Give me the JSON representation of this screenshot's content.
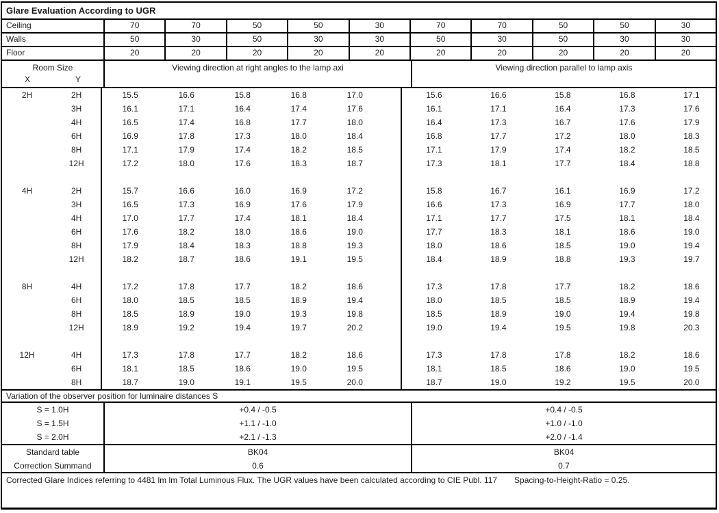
{
  "title": "Glare Evaluation According to UGR",
  "surfaces": [
    {
      "label": "Ceiling",
      "values": [
        "70",
        "70",
        "50",
        "50",
        "30",
        "70",
        "70",
        "50",
        "50",
        "30"
      ]
    },
    {
      "label": "Walls",
      "values": [
        "50",
        "30",
        "50",
        "30",
        "30",
        "50",
        "30",
        "50",
        "30",
        "30"
      ]
    },
    {
      "label": "Floor",
      "values": [
        "20",
        "20",
        "20",
        "20",
        "20",
        "20",
        "20",
        "20",
        "20",
        "20"
      ]
    }
  ],
  "header": {
    "room_size_label": "Room Size",
    "x_label": "X",
    "y_label": "Y",
    "left_heading": "Viewing direction at right angles to the lamp axi",
    "right_heading": "Viewing direction parallel to lamp axis"
  },
  "ugr_rows": [
    {
      "x": "2H",
      "y": "2H",
      "left": [
        "15.5",
        "16.6",
        "15.8",
        "16.8",
        "17.0"
      ],
      "right": [
        "15.6",
        "16.6",
        "15.8",
        "16.8",
        "17.1"
      ]
    },
    {
      "y": "3H",
      "left": [
        "16.1",
        "17.1",
        "16.4",
        "17.4",
        "17.6"
      ],
      "right": [
        "16.1",
        "17.1",
        "16.4",
        "17.3",
        "17.6"
      ]
    },
    {
      "y": "4H",
      "left": [
        "16.5",
        "17.4",
        "16.8",
        "17.7",
        "18.0"
      ],
      "right": [
        "16.4",
        "17.3",
        "16.7",
        "17.6",
        "17.9"
      ]
    },
    {
      "y": "6H",
      "left": [
        "16.9",
        "17.8",
        "17.3",
        "18.0",
        "18.4"
      ],
      "right": [
        "16.8",
        "17.7",
        "17.2",
        "18.0",
        "18.3"
      ]
    },
    {
      "y": "8H",
      "left": [
        "17.1",
        "17.9",
        "17.4",
        "18.2",
        "18.5"
      ],
      "right": [
        "17.1",
        "17.9",
        "17.4",
        "18.2",
        "18.5"
      ]
    },
    {
      "y": "12H",
      "left": [
        "17.2",
        "18.0",
        "17.6",
        "18.3",
        "18.7"
      ],
      "right": [
        "17.3",
        "18.1",
        "17.7",
        "18.4",
        "18.8"
      ]
    },
    {
      "blank": true
    },
    {
      "x": "4H",
      "y": "2H",
      "left": [
        "15.7",
        "16.6",
        "16.0",
        "16.9",
        "17.2"
      ],
      "right": [
        "15.8",
        "16.7",
        "16.1",
        "16.9",
        "17.2"
      ]
    },
    {
      "y": "3H",
      "left": [
        "16.5",
        "17.3",
        "16.9",
        "17.6",
        "17.9"
      ],
      "right": [
        "16.6",
        "17.3",
        "16.9",
        "17.7",
        "18.0"
      ]
    },
    {
      "y": "4H",
      "left": [
        "17.0",
        "17.7",
        "17.4",
        "18.1",
        "18.4"
      ],
      "right": [
        "17.1",
        "17.7",
        "17.5",
        "18.1",
        "18.4"
      ]
    },
    {
      "y": "6H",
      "left": [
        "17.6",
        "18.2",
        "18.0",
        "18.6",
        "19.0"
      ],
      "right": [
        "17.7",
        "18.3",
        "18.1",
        "18.6",
        "19.0"
      ]
    },
    {
      "y": "8H",
      "left": [
        "17.9",
        "18.4",
        "18.3",
        "18.8",
        "19.3"
      ],
      "right": [
        "18.0",
        "18.6",
        "18.5",
        "19.0",
        "19.4"
      ]
    },
    {
      "y": "12H",
      "left": [
        "18.2",
        "18.7",
        "18.6",
        "19.1",
        "19.5"
      ],
      "right": [
        "18.4",
        "18.9",
        "18.8",
        "19.3",
        "19.7"
      ]
    },
    {
      "blank": true
    },
    {
      "x": "8H",
      "y": "4H",
      "left": [
        "17.2",
        "17.8",
        "17.7",
        "18.2",
        "18.6"
      ],
      "right": [
        "17.3",
        "17.8",
        "17.7",
        "18.2",
        "18.6"
      ]
    },
    {
      "y": "6H",
      "left": [
        "18.0",
        "18.5",
        "18.5",
        "18.9",
        "19.4"
      ],
      "right": [
        "18.0",
        "18.5",
        "18.5",
        "18.9",
        "19.4"
      ]
    },
    {
      "y": "8H",
      "left": [
        "18.5",
        "18.9",
        "19.0",
        "19.3",
        "19.8"
      ],
      "right": [
        "18.5",
        "18.9",
        "19.0",
        "19.4",
        "19.8"
      ]
    },
    {
      "y": "12H",
      "left": [
        "18.9",
        "19.2",
        "19.4",
        "19.7",
        "20.2"
      ],
      "right": [
        "19.0",
        "19.4",
        "19.5",
        "19.8",
        "20.3"
      ]
    },
    {
      "blank": true
    },
    {
      "x": "12H",
      "y": "4H",
      "left": [
        "17.3",
        "17.8",
        "17.7",
        "18.2",
        "18.6"
      ],
      "right": [
        "17.3",
        "17.8",
        "17.8",
        "18.2",
        "18.6"
      ]
    },
    {
      "y": "6H",
      "left": [
        "18.1",
        "18.5",
        "18.6",
        "19.0",
        "19.5"
      ],
      "right": [
        "18.1",
        "18.5",
        "18.6",
        "19.0",
        "19.5"
      ]
    },
    {
      "y": "8H",
      "left": [
        "18.7",
        "19.0",
        "19.1",
        "19.5",
        "20.0"
      ],
      "right": [
        "18.7",
        "19.0",
        "19.2",
        "19.5",
        "20.0"
      ]
    }
  ],
  "variation_heading": "Variation of the observer position for luminaire distances S",
  "variation_rows": [
    {
      "label": "S = 1.0H",
      "left": "+0.4 / -0.5",
      "right": "+0.4 / -0.5"
    },
    {
      "label": "S = 1.5H",
      "left": "+1.1 / -1.0",
      "right": "+1.0 / -1.0"
    },
    {
      "label": "S = 2.0H",
      "left": "+2.1 / -1.3",
      "right": "+2.0 / -1.4"
    }
  ],
  "summary_rows": [
    {
      "label": "Standard table",
      "left": "BK04",
      "right": "BK04"
    },
    {
      "label": "Correction Summand",
      "left": "0.6",
      "right": "0.7"
    }
  ],
  "footer": {
    "text": "Corrected Glare Indices referring to 4481 lm lm Total Luminous Flux. The UGR values have been calculated according to CIE Publ. 117",
    "ratio": "Spacing-to-Height-Ratio = 0.25."
  },
  "colors": {
    "border": "#000000",
    "text": "#1c1c1c",
    "background": "#ffffff"
  }
}
